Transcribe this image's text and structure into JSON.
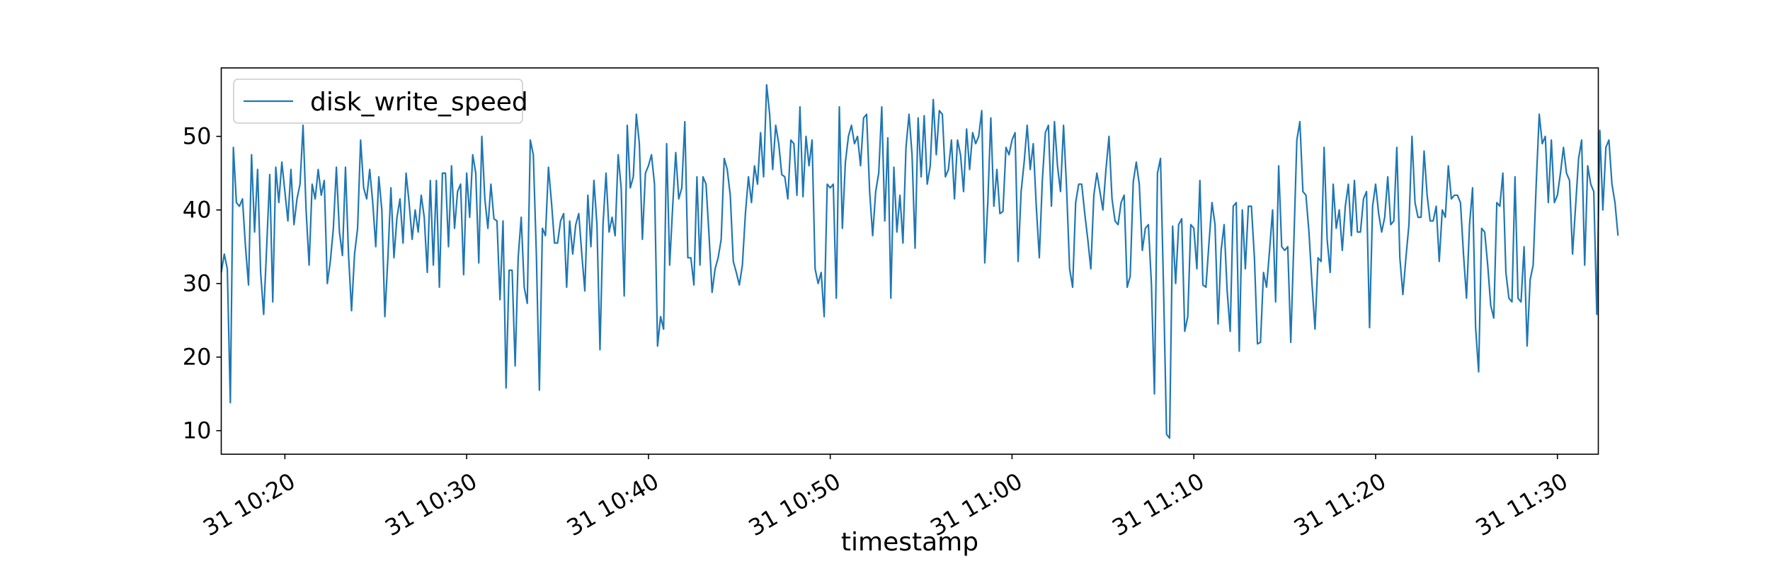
{
  "chart_data": {
    "type": "line",
    "xlabel": "timestamp",
    "ylabel": "",
    "legend_position": "top-left",
    "grid": false,
    "color": "#1f77b4",
    "x_range": [
      "31 10:16:30",
      "31 11:32:15"
    ],
    "ylim": [
      6.8,
      59.3
    ],
    "x_ticks": [
      {
        "time": "31 10:20",
        "label": "31 10:20"
      },
      {
        "time": "31 10:30",
        "label": "31 10:30"
      },
      {
        "time": "31 10:40",
        "label": "31 10:40"
      },
      {
        "time": "31 10:50",
        "label": "31 10:50"
      },
      {
        "time": "31 11:00",
        "label": "31 11:00"
      },
      {
        "time": "31 11:10",
        "label": "31 11:10"
      },
      {
        "time": "31 11:20",
        "label": "31 11:20"
      },
      {
        "time": "31 11:30",
        "label": "31 11:30"
      }
    ],
    "y_ticks": [
      10,
      20,
      30,
      40,
      50
    ],
    "series": [
      {
        "name": "disk_write_speed",
        "sample_interval_seconds": 10,
        "start": "31 10:16:30",
        "values": [
          31.5,
          34,
          32,
          13.8,
          48.5,
          41,
          40.5,
          41.5,
          35,
          29.8,
          47.5,
          37,
          45.5,
          31.5,
          25.8,
          35,
          44.8,
          27.5,
          45.8,
          41,
          46.5,
          42.5,
          38.5,
          45.5,
          38,
          41.5,
          43.5,
          51.5,
          40,
          32.5,
          43.5,
          41.5,
          45.5,
          42,
          44,
          30,
          33,
          37.5,
          45.8,
          37,
          33.8,
          45.8,
          34,
          26.3,
          34,
          37.5,
          49.5,
          43,
          41.5,
          45.5,
          41,
          35,
          44.5,
          40,
          25.5,
          33.5,
          43,
          33.5,
          39,
          41.5,
          35.5,
          45,
          41,
          36,
          40,
          37,
          42,
          39,
          31.5,
          44,
          32.5,
          44,
          29.5,
          45,
          45,
          35,
          46,
          37.5,
          42.5,
          43.5,
          31.2,
          45,
          39,
          47.5,
          45,
          32.8,
          50,
          41.5,
          37.5,
          43.5,
          38.8,
          38.5,
          27.8,
          38.5,
          15.8,
          31.8,
          31.8,
          18.8,
          33.5,
          39,
          29.5,
          27.3,
          49.5,
          47.5,
          34,
          15.5,
          37.5,
          36.5,
          45.8,
          41,
          35.5,
          35.5,
          38.5,
          39.5,
          29.5,
          38.5,
          34,
          38,
          39.5,
          34,
          29,
          42,
          35,
          44,
          38,
          21,
          38,
          45,
          37,
          39,
          36.5,
          47.5,
          43,
          28.3,
          51.5,
          43,
          44.5,
          53,
          49,
          36,
          45,
          46,
          47.5,
          43.5,
          21.5,
          25.5,
          23.8,
          49,
          32.5,
          40.5,
          47.8,
          41.5,
          43,
          52,
          33.5,
          33.5,
          29.8,
          44.5,
          32.5,
          44.5,
          43.5,
          36.5,
          28.8,
          32,
          33.5,
          36,
          47,
          45.5,
          42,
          33,
          31.5,
          29.8,
          32.5,
          39.5,
          44.5,
          41,
          46,
          43.5,
          50.5,
          44.5,
          57,
          53,
          45.5,
          51.5,
          49,
          44.8,
          44.5,
          41.5,
          49.5,
          49,
          42,
          54,
          41.8,
          50,
          46,
          49.5,
          32,
          30,
          31.5,
          25.5,
          43.5,
          43,
          43.5,
          28,
          54,
          37.5,
          46.5,
          50,
          51.5,
          49,
          50,
          46,
          52.5,
          53,
          42.5,
          36.5,
          42.5,
          45,
          54,
          38.5,
          49.8,
          28,
          45.8,
          37,
          42,
          35.5,
          48.5,
          53,
          47.5,
          34.8,
          52.5,
          44.5,
          52.8,
          43.5,
          46,
          55,
          47.5,
          53.5,
          53,
          44.5,
          45.5,
          49.5,
          41.5,
          49.5,
          47.5,
          42.5,
          51,
          45.5,
          50.5,
          49,
          50,
          53.5,
          32.8,
          41,
          52.5,
          40.5,
          45.5,
          39.5,
          39.8,
          48.5,
          47.5,
          49.5,
          50.5,
          33,
          42.5,
          46.5,
          51.5,
          45.5,
          49,
          40.5,
          33.5,
          44,
          50.5,
          51.5,
          40.5,
          52,
          46,
          42.5,
          51.5,
          43,
          32,
          29.5,
          41,
          43.5,
          43.5,
          39.5,
          36,
          32,
          42,
          45,
          42.5,
          40,
          45.5,
          50,
          41.5,
          38.5,
          38,
          41,
          42,
          29.5,
          31,
          43.8,
          46.5,
          43.5,
          34.5,
          37.5,
          38,
          30,
          15,
          45,
          47,
          29.5,
          9.5,
          9,
          37.8,
          30,
          38,
          38.8,
          23.5,
          25.5,
          38,
          37.5,
          32,
          44,
          29.8,
          29.5,
          35.5,
          41,
          38,
          24.5,
          34.5,
          38,
          29,
          23.5,
          40.5,
          41,
          20.8,
          40,
          32,
          40.5,
          40.5,
          33.5,
          21.8,
          22,
          31.5,
          29.5,
          34.5,
          40,
          27.5,
          46,
          35,
          34.5,
          35,
          22,
          35.5,
          49.5,
          52,
          42.5,
          42,
          37,
          30,
          23.8,
          33.5,
          33,
          48.5,
          36,
          31.5,
          43.5,
          37.5,
          40,
          34.5,
          40.5,
          43.5,
          36.5,
          44,
          37,
          37,
          41.5,
          42.5,
          24,
          40.5,
          43.5,
          39.5,
          37,
          39,
          44.5,
          38,
          38.5,
          48.5,
          33.5,
          28.5,
          33.5,
          38,
          50,
          41,
          39,
          39,
          48,
          42,
          38.5,
          38.5,
          40.5,
          33,
          40,
          39,
          46,
          41.5,
          42,
          42,
          41,
          34,
          28,
          38,
          43,
          24,
          18,
          37.5,
          37,
          32.5,
          27,
          25.3,
          41,
          40.5,
          45,
          31.5,
          28,
          27.5,
          44.5,
          28,
          27.5,
          35,
          21.5,
          30.5,
          32.5,
          43.5,
          53,
          49,
          50,
          41,
          49.5,
          41,
          42,
          45,
          48.5,
          45,
          44,
          34,
          40.5,
          47,
          49.5,
          32.5,
          46,
          43.5,
          42.5,
          25.8,
          50.8,
          40,
          48.5,
          49.5,
          43.5,
          41,
          36.5
        ]
      }
    ]
  }
}
